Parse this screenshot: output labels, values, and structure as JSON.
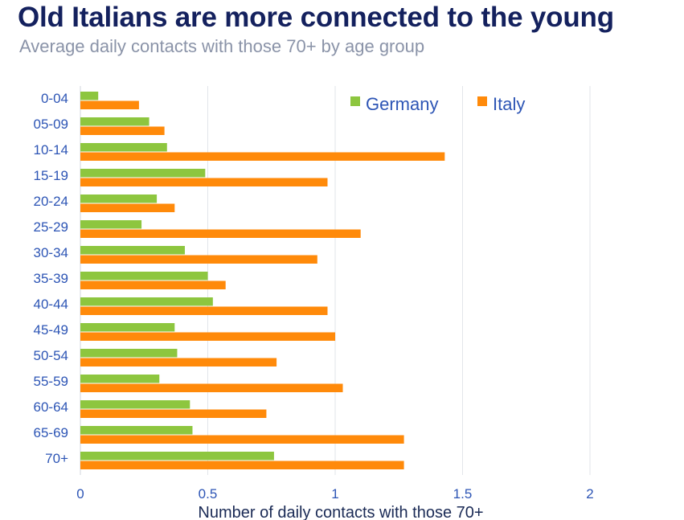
{
  "header": {
    "title": "Old Italians are more connected to the young",
    "subtitle": "Average daily contacts with those 70+ by age group"
  },
  "chart_data": {
    "type": "bar",
    "orientation": "horizontal",
    "title": "Old Italians are more connected to the young",
    "subtitle": "Average daily contacts with those 70+ by age group",
    "xlabel": "Number of daily contacts with those 70+",
    "ylabel": "",
    "xlim": [
      0,
      2
    ],
    "xticks": [
      "0",
      "0.5",
      "1",
      "1.5",
      "2"
    ],
    "xtick_values": [
      0,
      0.5,
      1,
      1.5,
      2
    ],
    "grid": true,
    "legend_position": "top-right",
    "categories": [
      "0-04",
      "05-09",
      "10-14",
      "15-19",
      "20-24",
      "25-29",
      "30-34",
      "35-39",
      "40-44",
      "45-49",
      "50-54",
      "55-59",
      "60-64",
      "65-69",
      "70+"
    ],
    "series": [
      {
        "name": "Germany",
        "color": "#8dc63f",
        "values": [
          0.07,
          0.27,
          0.34,
          0.49,
          0.3,
          0.24,
          0.41,
          0.5,
          0.52,
          0.37,
          0.38,
          0.31,
          0.43,
          0.44,
          0.76
        ]
      },
      {
        "name": "Italy",
        "color": "#ff8a0a",
        "values": [
          0.23,
          0.33,
          1.43,
          0.97,
          0.37,
          1.1,
          0.93,
          0.57,
          0.97,
          1.0,
          0.77,
          1.03,
          0.73,
          1.27,
          1.27
        ]
      }
    ]
  }
}
